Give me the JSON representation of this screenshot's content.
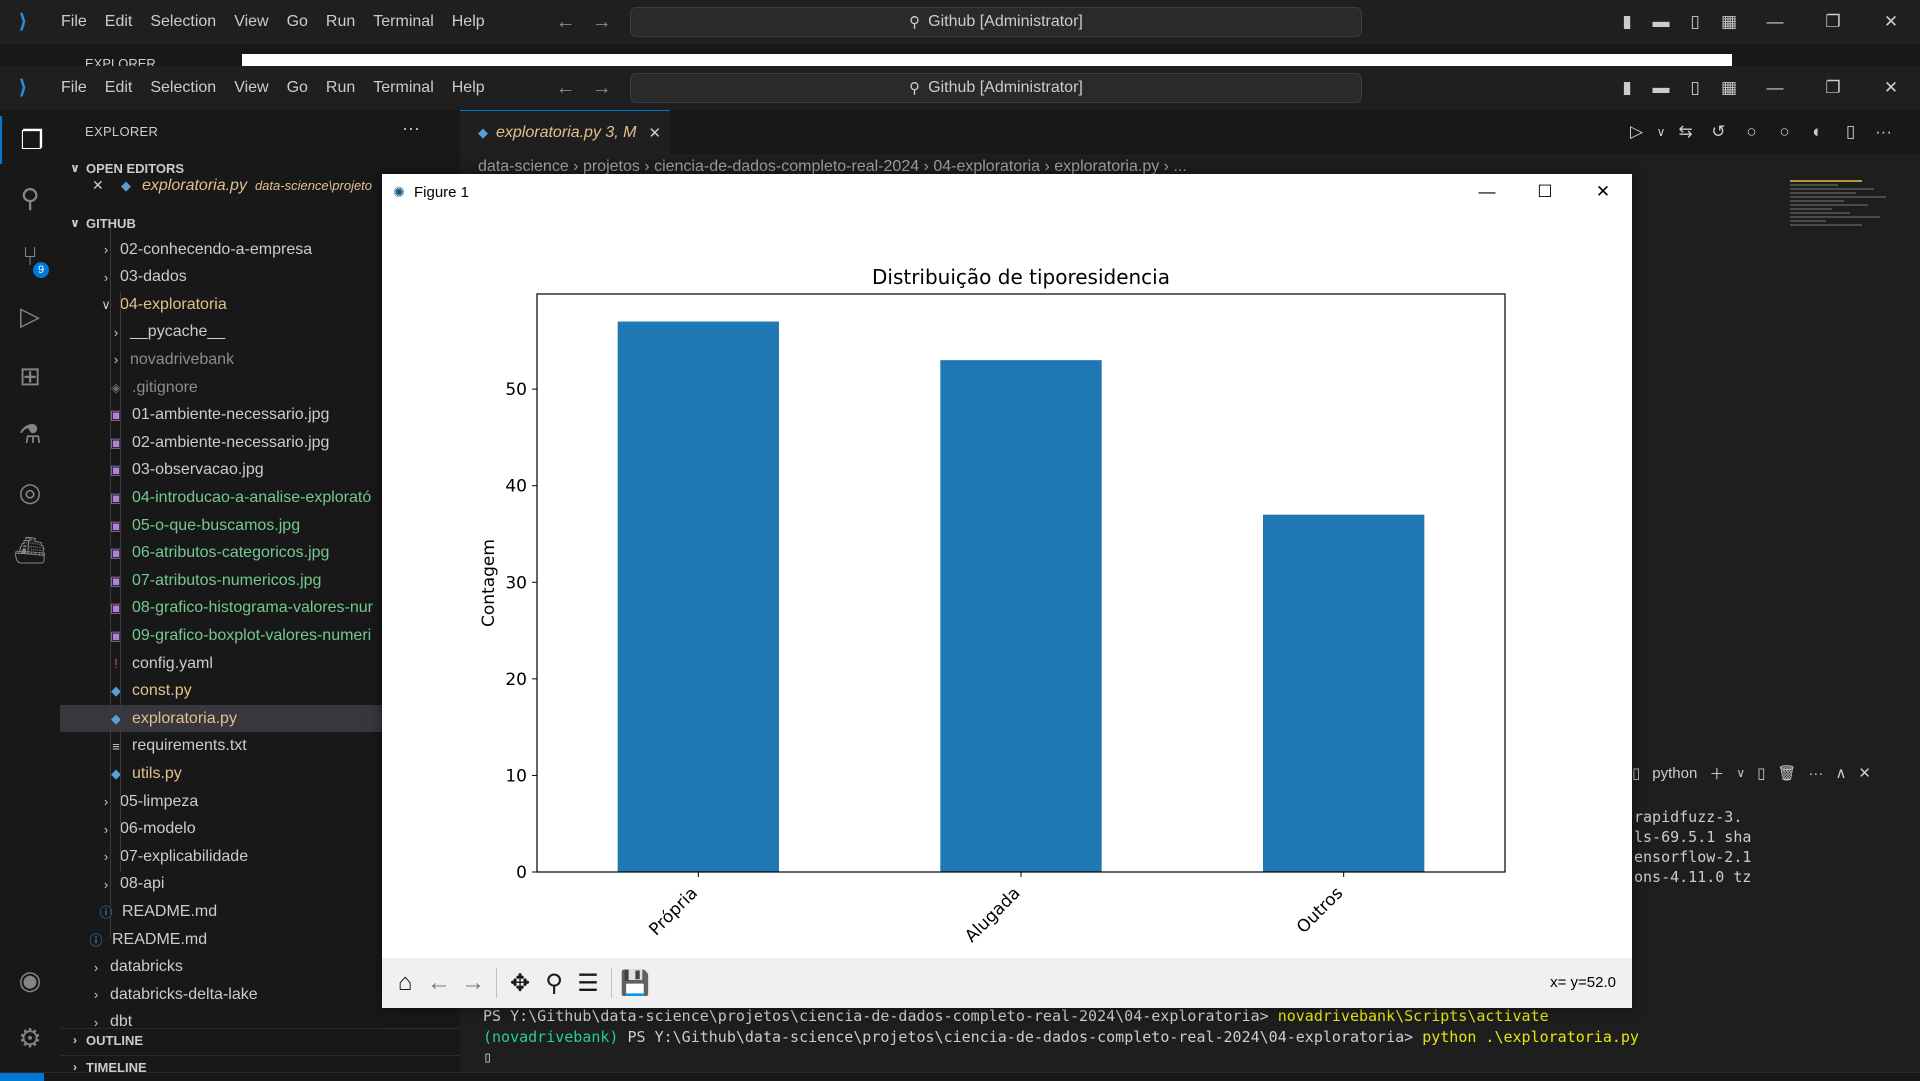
{
  "menu": [
    "File",
    "Edit",
    "Selection",
    "View",
    "Go",
    "Run",
    "Terminal",
    "Help"
  ],
  "command_center": "Github [Administrator]",
  "back_window": {
    "explorer_label": "EXPLORER"
  },
  "sidebar": {
    "title": "EXPLORER",
    "open_editors_label": "OPEN EDITORS",
    "open_editor": {
      "name": "exploratoria.py",
      "path": "data-science\\projeto"
    },
    "github_label": "GITHUB",
    "tree": [
      {
        "label": "02-conhecendo-a-empresa",
        "kind": "folder"
      },
      {
        "label": "03-dados",
        "kind": "folder"
      },
      {
        "label": "04-exploratoria",
        "kind": "folder-open"
      },
      {
        "label": "__pycache__",
        "kind": "folder"
      },
      {
        "label": "novadrivebank",
        "kind": "folder"
      },
      {
        "label": ".gitignore",
        "kind": "file"
      },
      {
        "label": "01-ambiente-necessario.jpg",
        "kind": "image"
      },
      {
        "label": "02-ambiente-necessario.jpg",
        "kind": "image"
      },
      {
        "label": "03-observacao.jpg",
        "kind": "image"
      },
      {
        "label": "04-introducao-a-analise-explorató",
        "kind": "image"
      },
      {
        "label": "05-o-que-buscamos.jpg",
        "kind": "image"
      },
      {
        "label": "06-atributos-categoricos.jpg",
        "kind": "image"
      },
      {
        "label": "07-atributos-numericos.jpg",
        "kind": "image"
      },
      {
        "label": "08-grafico-histograma-valores-nur",
        "kind": "image"
      },
      {
        "label": "09-grafico-boxplot-valores-numeri",
        "kind": "image"
      },
      {
        "label": "config.yaml",
        "kind": "yaml"
      },
      {
        "label": "const.py",
        "kind": "python"
      },
      {
        "label": "exploratoria.py",
        "kind": "python"
      },
      {
        "label": "requirements.txt",
        "kind": "text"
      },
      {
        "label": "utils.py",
        "kind": "python"
      },
      {
        "label": "05-limpeza",
        "kind": "folder"
      },
      {
        "label": "06-modelo",
        "kind": "folder"
      },
      {
        "label": "07-explicabilidade",
        "kind": "folder"
      },
      {
        "label": "08-api",
        "kind": "folder"
      },
      {
        "label": "README.md",
        "kind": "info"
      },
      {
        "label": "README.md",
        "kind": "info"
      },
      {
        "label": "databricks",
        "kind": "folder"
      },
      {
        "label": "databricks-delta-lake",
        "kind": "folder"
      },
      {
        "label": "dbt",
        "kind": "folder"
      }
    ],
    "outline_label": "OUTLINE",
    "timeline_label": "TIMELINE"
  },
  "activity_badge": "9",
  "editor": {
    "tab_label": "exploratoria.py 3, M",
    "breadcrumb": [
      "data-science",
      "projetos",
      "ciencia-de-dados-completo-real-2024",
      "04-exploratoria",
      "exploratoria.py",
      "..."
    ]
  },
  "terminal": {
    "shell": "python",
    "right_lines": [
      "rapidfuzz-3.",
      "ls-69.5.1 sha",
      "ensorflow-2.1",
      "ons-4.11.0 tz"
    ],
    "line1_prompt": "PS Y:\\Github\\data-science\\projetos\\ciencia-de-dados-completo-real-2024\\04-exploratoria>",
    "line1_cmd": "novadrivebank\\Scripts\\activate",
    "line2_env": "(novadrivebank)",
    "line2_prompt": "PS Y:\\Github\\data-science\\projetos\\ciencia-de-dados-completo-real-2024\\04-exploratoria>",
    "line2_cmd": "python .\\exploratoria.py",
    "cursor": "▯"
  },
  "figure": {
    "window_title": "Figure 1",
    "coords": "x= y=52.0"
  },
  "chart_data": {
    "type": "bar",
    "title": "Distribuição de tiporesidencia",
    "xlabel": "",
    "ylabel": "Contagem",
    "categories": [
      "Própria",
      "Alugada",
      "Outros"
    ],
    "values": [
      57,
      53,
      37
    ],
    "ylim": [
      0,
      59.85
    ],
    "yticks": [
      0,
      10,
      20,
      30,
      40,
      50
    ],
    "bar_color": "#1f77b4",
    "grid": false
  }
}
